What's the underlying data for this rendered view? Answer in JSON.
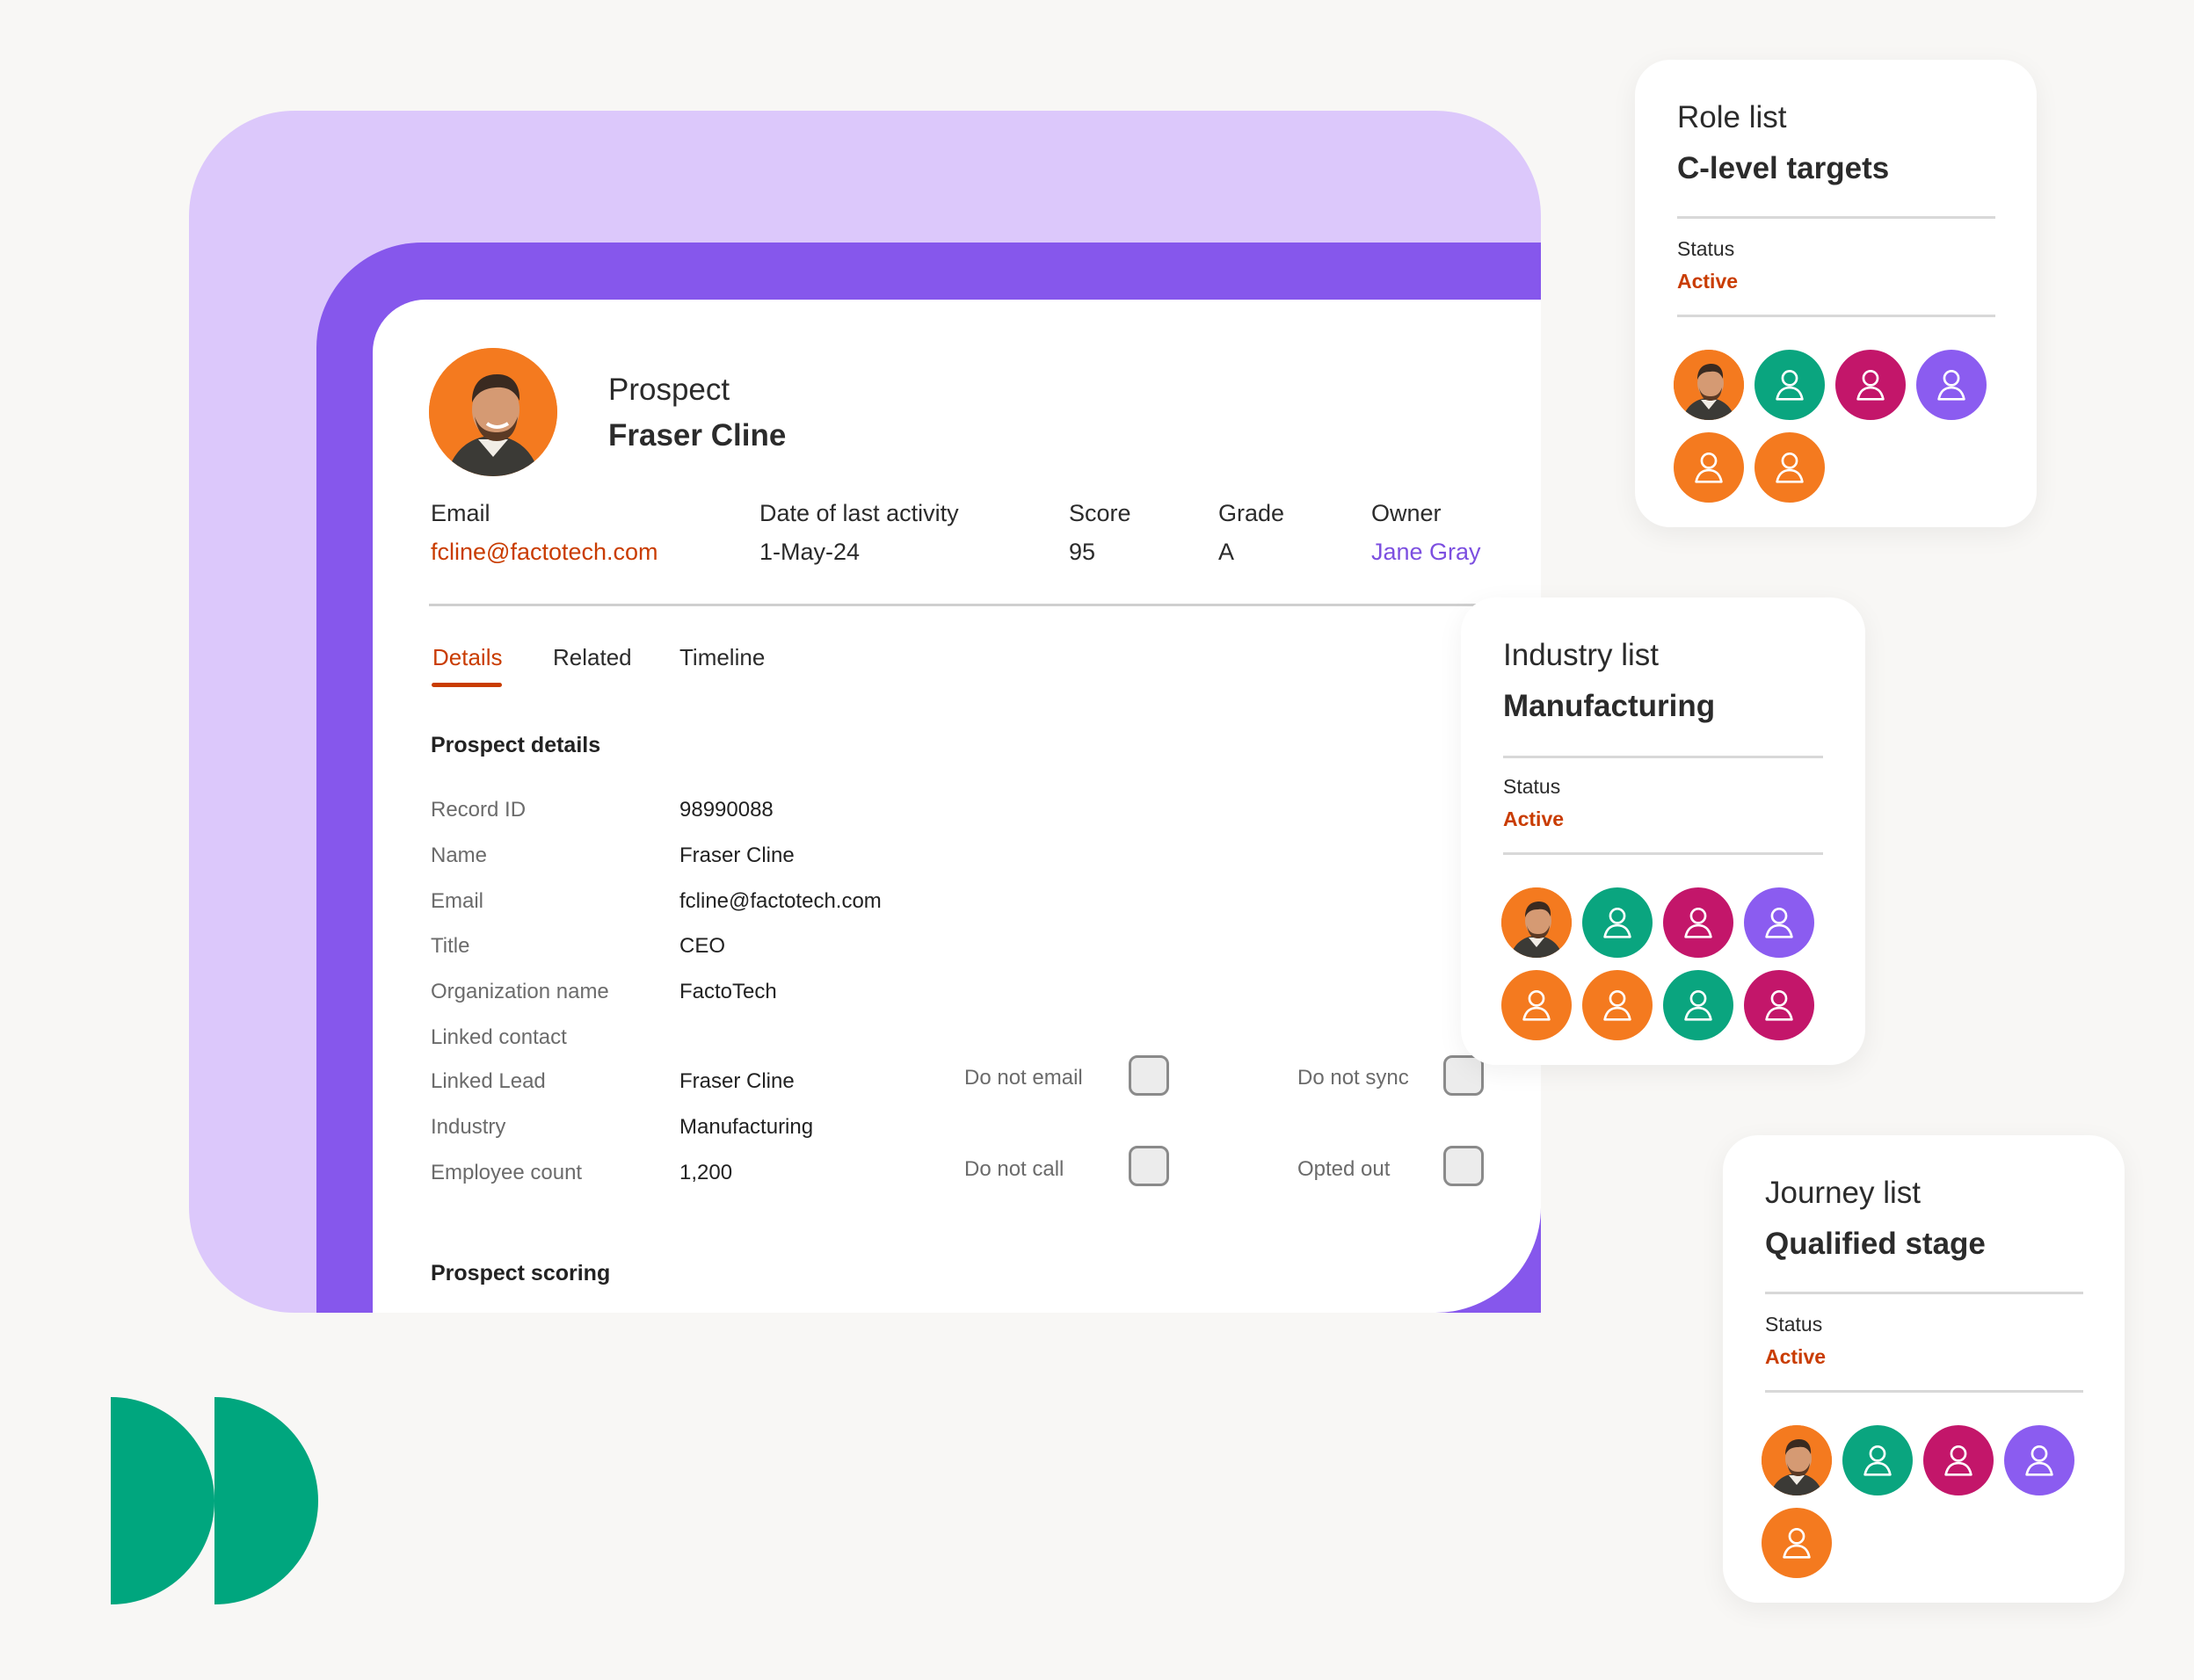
{
  "prospect": {
    "eyebrow": "Prospect",
    "name": "Fraser Cline",
    "meta": {
      "email_label": "Email",
      "email_value": "fcline@factotech.com",
      "last_activity_label": "Date of last activity",
      "last_activity_value": "1-May-24",
      "score_label": "Score",
      "score_value": "95",
      "grade_label": "Grade",
      "grade_value": "A",
      "owner_label": "Owner",
      "owner_value": "Jane Gray"
    },
    "tabs": [
      "Details",
      "Related",
      "Timeline"
    ],
    "active_tab": "Details",
    "details_title": "Prospect details",
    "fields": {
      "record_id_label": "Record ID",
      "record_id_value": "98990088",
      "name_label": "Name",
      "name_value": "Fraser Cline",
      "email_label": "Email",
      "email_value": "fcline@factotech.com",
      "title_label": "Title",
      "title_value": "CEO",
      "org_label": "Organization name",
      "org_value": "FactoTech",
      "linked_contact_label": "Linked contact",
      "linked_contact_value": "",
      "linked_lead_label": "Linked Lead",
      "linked_lead_value": "Fraser Cline",
      "industry_label": "Industry",
      "industry_value": "Manufacturing",
      "employee_count_label": "Employee count",
      "employee_count_value": "1,200"
    },
    "flags": {
      "do_not_email": "Do not email",
      "do_not_sync": "Do not sync",
      "do_not_call": "Do not call",
      "opted_out": "Opted out"
    },
    "scoring_title": "Prospect scoring"
  },
  "lists": [
    {
      "eyebrow": "Role list",
      "title": "C-level targets",
      "status_label": "Status",
      "status_value": "Active",
      "members": [
        "photo",
        "green",
        "magenta",
        "violet",
        "orange",
        "orange"
      ]
    },
    {
      "eyebrow": "Industry list",
      "title": "Manufacturing",
      "status_label": "Status",
      "status_value": "Active",
      "members": [
        "photo",
        "green",
        "magenta",
        "violet",
        "orange",
        "orange",
        "green",
        "magenta"
      ]
    },
    {
      "eyebrow": "Journey list",
      "title": "Qualified stage",
      "status_label": "Status",
      "status_value": "Active",
      "members": [
        "photo",
        "green",
        "magenta",
        "violet",
        "orange"
      ]
    }
  ],
  "colors": {
    "accent_orange": "#c93c00",
    "accent_violet": "#7c4fe0",
    "brand_purple": "#8657ec",
    "lavender": "#dcc8fb",
    "logo_green": "#00a67e"
  },
  "icons": [
    "person-photo-avatar",
    "user-icon",
    "checkbox",
    "brand-logo"
  ]
}
